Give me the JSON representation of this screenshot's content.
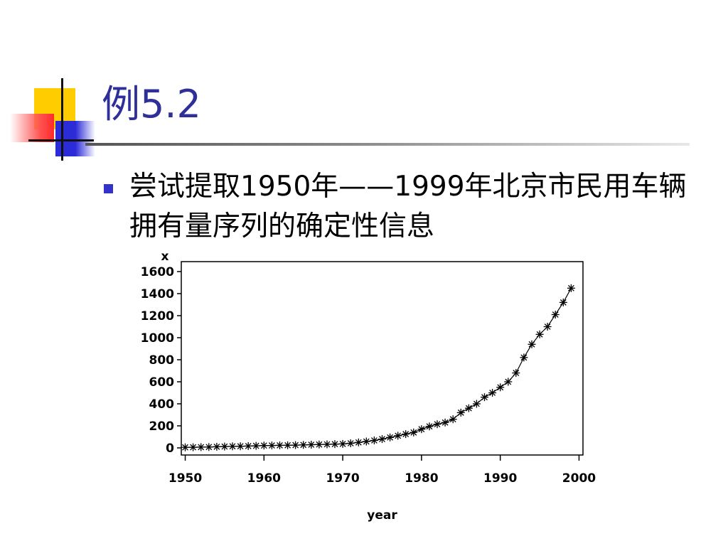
{
  "slide": {
    "title": "例5.2",
    "bullet_text": "尝试提取1950年——1999年北京市民用车辆拥有量序列的确定性信息"
  },
  "colors": {
    "title": "#2f2f9a",
    "bullet": "#3333cc",
    "deco_yellow": "#ffcc00",
    "deco_red": "#ff2a2a",
    "deco_blue": "#2b2bd8"
  },
  "chart_data": {
    "type": "scatter",
    "marker": "asterisk",
    "connected": true,
    "ylabel": "x",
    "xlabel": "year",
    "xlim": [
      1950,
      2000
    ],
    "ylim": [
      0,
      1600
    ],
    "x_ticks": [
      "1950",
      "1960",
      "1970",
      "1980",
      "1990",
      "2000"
    ],
    "y_ticks": [
      "0",
      "200",
      "400",
      "600",
      "800",
      "1000",
      "1200",
      "1400",
      "1600"
    ],
    "x": [
      1950,
      1951,
      1952,
      1953,
      1954,
      1955,
      1956,
      1957,
      1958,
      1959,
      1960,
      1961,
      1962,
      1963,
      1964,
      1965,
      1966,
      1967,
      1968,
      1969,
      1970,
      1971,
      1972,
      1973,
      1974,
      1975,
      1976,
      1977,
      1978,
      1979,
      1980,
      1981,
      1982,
      1983,
      1984,
      1985,
      1986,
      1987,
      1988,
      1989,
      1990,
      1991,
      1992,
      1993,
      1994,
      1995,
      1996,
      1997,
      1998,
      1999
    ],
    "values": [
      5,
      6,
      7,
      8,
      10,
      12,
      14,
      15,
      17,
      19,
      21,
      22,
      23,
      24,
      25,
      27,
      29,
      31,
      32,
      34,
      36,
      42,
      50,
      58,
      68,
      80,
      95,
      110,
      125,
      140,
      170,
      195,
      215,
      230,
      260,
      320,
      360,
      400,
      460,
      500,
      550,
      600,
      680,
      820,
      940,
      1030,
      1100,
      1210,
      1320,
      1450
    ]
  }
}
